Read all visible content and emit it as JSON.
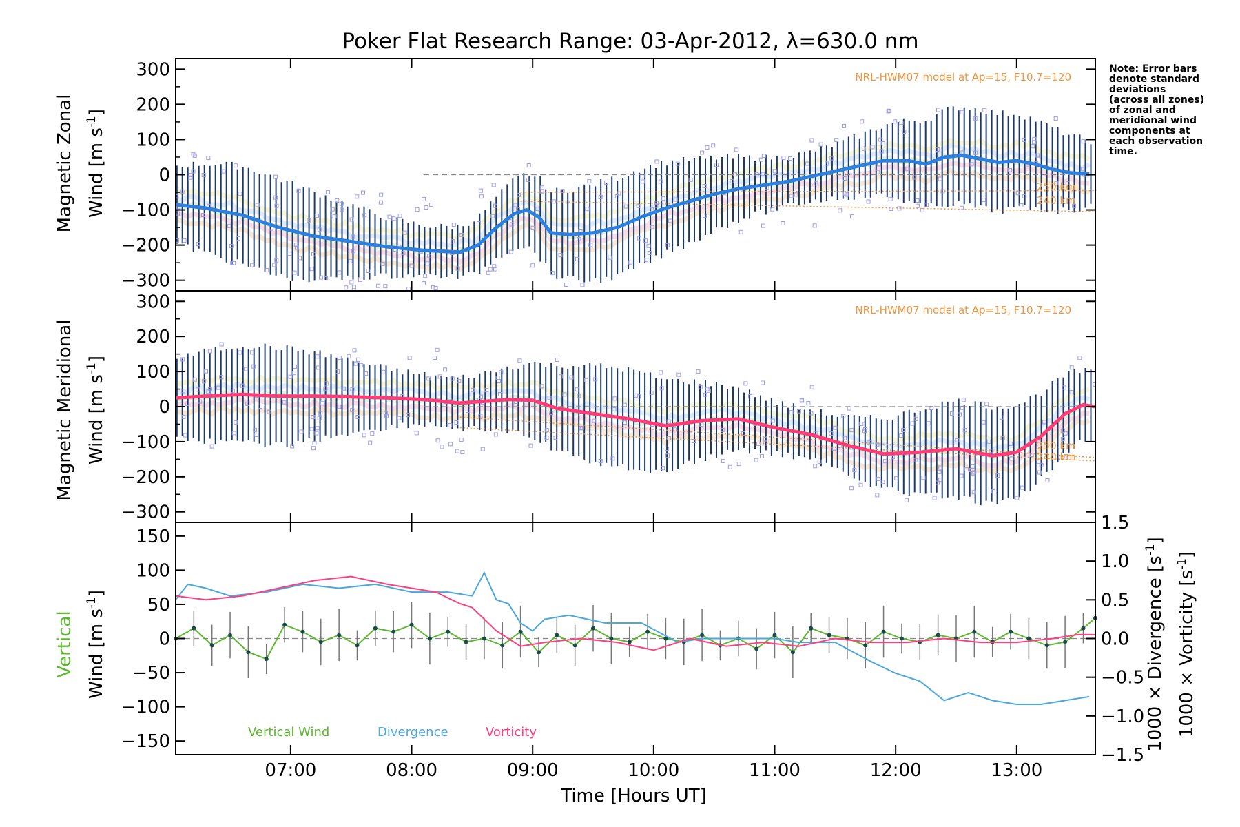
{
  "title": "Poker Flat Research Range: 03-Apr-2012, λ=630.0 nm",
  "note_lines": [
    "Note: Error bars",
    "denote standard",
    "deviations",
    "(across all zones)",
    "of zonal and",
    "meridional wind",
    "components at",
    "each observation",
    "time."
  ],
  "xlabel": "Time [Hours UT]",
  "x_tick_labels": [
    "07:00",
    "08:00",
    "09:00",
    "10:00",
    "11:00",
    "12:00",
    "13:00"
  ],
  "panels": {
    "zonal": {
      "ylabel_lines": [
        "Magnetic Zonal",
        "Wind [m s-1]"
      ],
      "y_tick_labels": [
        "300",
        "200",
        "100",
        "0",
        "−100",
        "−200",
        "−300"
      ],
      "model_label": "NRL-HWM07 model at Ap=15, F10.7=120",
      "altitude_labels": [
        "250 km",
        "240 km"
      ]
    },
    "meridional": {
      "ylabel_lines": [
        "Magnetic Meridional",
        "Wind [m s-1]"
      ],
      "y_tick_labels": [
        "300",
        "200",
        "100",
        "0",
        "−100",
        "−200",
        "−300"
      ],
      "model_label": "NRL-HWM07 model at Ap=15, F10.7=120",
      "altitude_labels": [
        "250 km",
        "240 km"
      ]
    },
    "vertical": {
      "ylabel_lines": [
        "Vertical",
        "Wind [m s-1]"
      ],
      "y_tick_labels": [
        "150",
        "100",
        "50",
        "0",
        "−50",
        "−100",
        "−150"
      ],
      "right_tick_labels": [
        "1.5",
        "1.0",
        "0.5",
        "0.0",
        "−0.5",
        "−1.0",
        "−1.5"
      ],
      "right_label_divergence": "1000 × Divergence [s-1]",
      "right_label_vorticity": "1000 × Vorticity [s-1]",
      "legend": [
        "Vertical Wind",
        "Divergence",
        "Vorticity"
      ]
    }
  },
  "colors": {
    "zonal_mean": "#2f7fe0",
    "meridional_mean": "#ff3c78",
    "vertical_wind": "#5cb82f",
    "divergence": "#4aa8dc",
    "vorticity": "#ff4080",
    "model": "#f0963c",
    "scatter": "#9d9de6",
    "errorbar": "#1a3a6e"
  },
  "chart_data": [
    {
      "type": "line",
      "panel": "zonal",
      "xlim_hours_ut": [
        6.05,
        13.65
      ],
      "ylim": [
        -330,
        330
      ],
      "series": [
        {
          "name": "zonal mean",
          "x": [
            6.05,
            6.3,
            6.6,
            6.9,
            7.2,
            7.5,
            7.8,
            8.1,
            8.4,
            8.55,
            8.7,
            8.85,
            8.95,
            9.05,
            9.15,
            9.3,
            9.5,
            9.7,
            9.9,
            10.1,
            10.3,
            10.5,
            10.7,
            10.9,
            11.1,
            11.3,
            11.5,
            11.7,
            11.9,
            12.1,
            12.25,
            12.4,
            12.55,
            12.7,
            12.85,
            13.0,
            13.15,
            13.3,
            13.45,
            13.6
          ],
          "y": [
            -85,
            -95,
            -115,
            -150,
            -175,
            -190,
            -205,
            -215,
            -220,
            -200,
            -150,
            -110,
            -100,
            -120,
            -165,
            -170,
            -165,
            -150,
            -120,
            -95,
            -75,
            -55,
            -40,
            -30,
            -20,
            -5,
            10,
            25,
            40,
            40,
            30,
            50,
            55,
            45,
            35,
            40,
            30,
            15,
            5,
            2
          ]
        },
        {
          "name": "model 250 km",
          "x": [
            8.9,
            13.65
          ],
          "y": [
            -50,
            -45
          ]
        },
        {
          "name": "model 240 km",
          "x": [
            8.9,
            13.65
          ],
          "y": [
            -75,
            -105
          ]
        }
      ]
    },
    {
      "type": "line",
      "panel": "meridional",
      "xlim_hours_ut": [
        6.05,
        13.65
      ],
      "ylim": [
        -330,
        330
      ],
      "series": [
        {
          "name": "meridional mean",
          "x": [
            6.05,
            6.3,
            6.6,
            6.9,
            7.2,
            7.5,
            7.8,
            8.1,
            8.4,
            8.6,
            8.8,
            9.0,
            9.2,
            9.5,
            9.8,
            10.1,
            10.4,
            10.7,
            11.0,
            11.3,
            11.6,
            11.9,
            12.2,
            12.5,
            12.8,
            13.0,
            13.2,
            13.4,
            13.55,
            13.65
          ],
          "y": [
            25,
            30,
            35,
            30,
            30,
            28,
            25,
            20,
            10,
            15,
            20,
            18,
            -5,
            -20,
            -35,
            -55,
            -40,
            -35,
            -60,
            -80,
            -110,
            -135,
            -130,
            -120,
            -140,
            -130,
            -85,
            -20,
            5,
            0
          ]
        },
        {
          "name": "model 250 km",
          "x": [
            8.4,
            13.65
          ],
          "y": [
            -30,
            -145
          ]
        },
        {
          "name": "model 240 km",
          "x": [
            8.4,
            13.65
          ],
          "y": [
            -60,
            -155
          ]
        }
      ]
    },
    {
      "type": "line",
      "panel": "vertical",
      "xlim_hours_ut": [
        6.05,
        13.65
      ],
      "ylim": [
        -170,
        170
      ],
      "ylim_right": [
        -1.5,
        1.5
      ],
      "series": [
        {
          "name": "Vertical Wind",
          "x": [
            6.05,
            6.2,
            6.35,
            6.5,
            6.65,
            6.8,
            6.95,
            7.1,
            7.25,
            7.4,
            7.55,
            7.7,
            7.85,
            8.0,
            8.15,
            8.3,
            8.45,
            8.6,
            8.75,
            8.9,
            9.05,
            9.2,
            9.35,
            9.5,
            9.65,
            9.8,
            9.95,
            10.1,
            10.25,
            10.4,
            10.55,
            10.7,
            10.85,
            11.0,
            11.15,
            11.3,
            11.45,
            11.6,
            11.75,
            11.9,
            12.05,
            12.2,
            12.35,
            12.5,
            12.65,
            12.8,
            12.95,
            13.1,
            13.25,
            13.4,
            13.55,
            13.65
          ],
          "y": [
            0,
            15,
            -10,
            5,
            -20,
            -30,
            20,
            10,
            -5,
            5,
            -10,
            15,
            10,
            20,
            0,
            10,
            -5,
            0,
            -10,
            10,
            -20,
            5,
            -10,
            15,
            0,
            -5,
            10,
            0,
            -5,
            5,
            -10,
            0,
            -15,
            5,
            -20,
            15,
            5,
            0,
            -10,
            10,
            0,
            -5,
            5,
            0,
            10,
            -5,
            10,
            0,
            -10,
            -5,
            15,
            30
          ]
        },
        {
          "name": "Divergence",
          "axis": "right",
          "x": [
            6.05,
            6.15,
            6.3,
            6.5,
            6.8,
            7.1,
            7.4,
            7.7,
            8.0,
            8.3,
            8.5,
            8.6,
            8.7,
            8.8,
            8.9,
            9.0,
            9.1,
            9.3,
            9.6,
            9.9,
            10.2,
            10.4,
            10.7,
            11.0,
            11.2,
            11.5,
            11.8,
            12.0,
            12.2,
            12.4,
            12.6,
            12.8,
            13.0,
            13.2,
            13.4,
            13.6
          ],
          "y": [
            0.5,
            0.7,
            0.65,
            0.55,
            0.6,
            0.7,
            0.65,
            0.7,
            0.6,
            0.6,
            0.55,
            0.85,
            0.5,
            0.45,
            0.2,
            0.1,
            0.25,
            0.3,
            0.2,
            0.2,
            -0.05,
            0.0,
            0.0,
            0.0,
            -0.05,
            -0.05,
            -0.3,
            -0.45,
            -0.55,
            -0.8,
            -0.7,
            -0.8,
            -0.85,
            -0.85,
            -0.8,
            -0.75
          ]
        },
        {
          "name": "Vorticity",
          "axis": "right",
          "x": [
            6.05,
            6.3,
            6.6,
            6.9,
            7.2,
            7.5,
            7.8,
            8.0,
            8.2,
            8.4,
            8.5,
            8.7,
            8.9,
            9.1,
            9.4,
            9.7,
            10.0,
            10.3,
            10.6,
            10.9,
            11.2,
            11.5,
            11.8,
            12.1,
            12.4,
            12.7,
            13.0,
            13.3,
            13.5,
            13.65
          ],
          "y": [
            0.55,
            0.5,
            0.55,
            0.65,
            0.75,
            0.8,
            0.7,
            0.65,
            0.6,
            0.45,
            0.4,
            0.1,
            -0.1,
            -0.05,
            0.0,
            -0.05,
            -0.15,
            0.0,
            -0.1,
            -0.05,
            -0.1,
            0.0,
            -0.05,
            -0.05,
            0.0,
            -0.05,
            -0.05,
            0.0,
            0.05,
            0.05
          ]
        }
      ]
    }
  ]
}
